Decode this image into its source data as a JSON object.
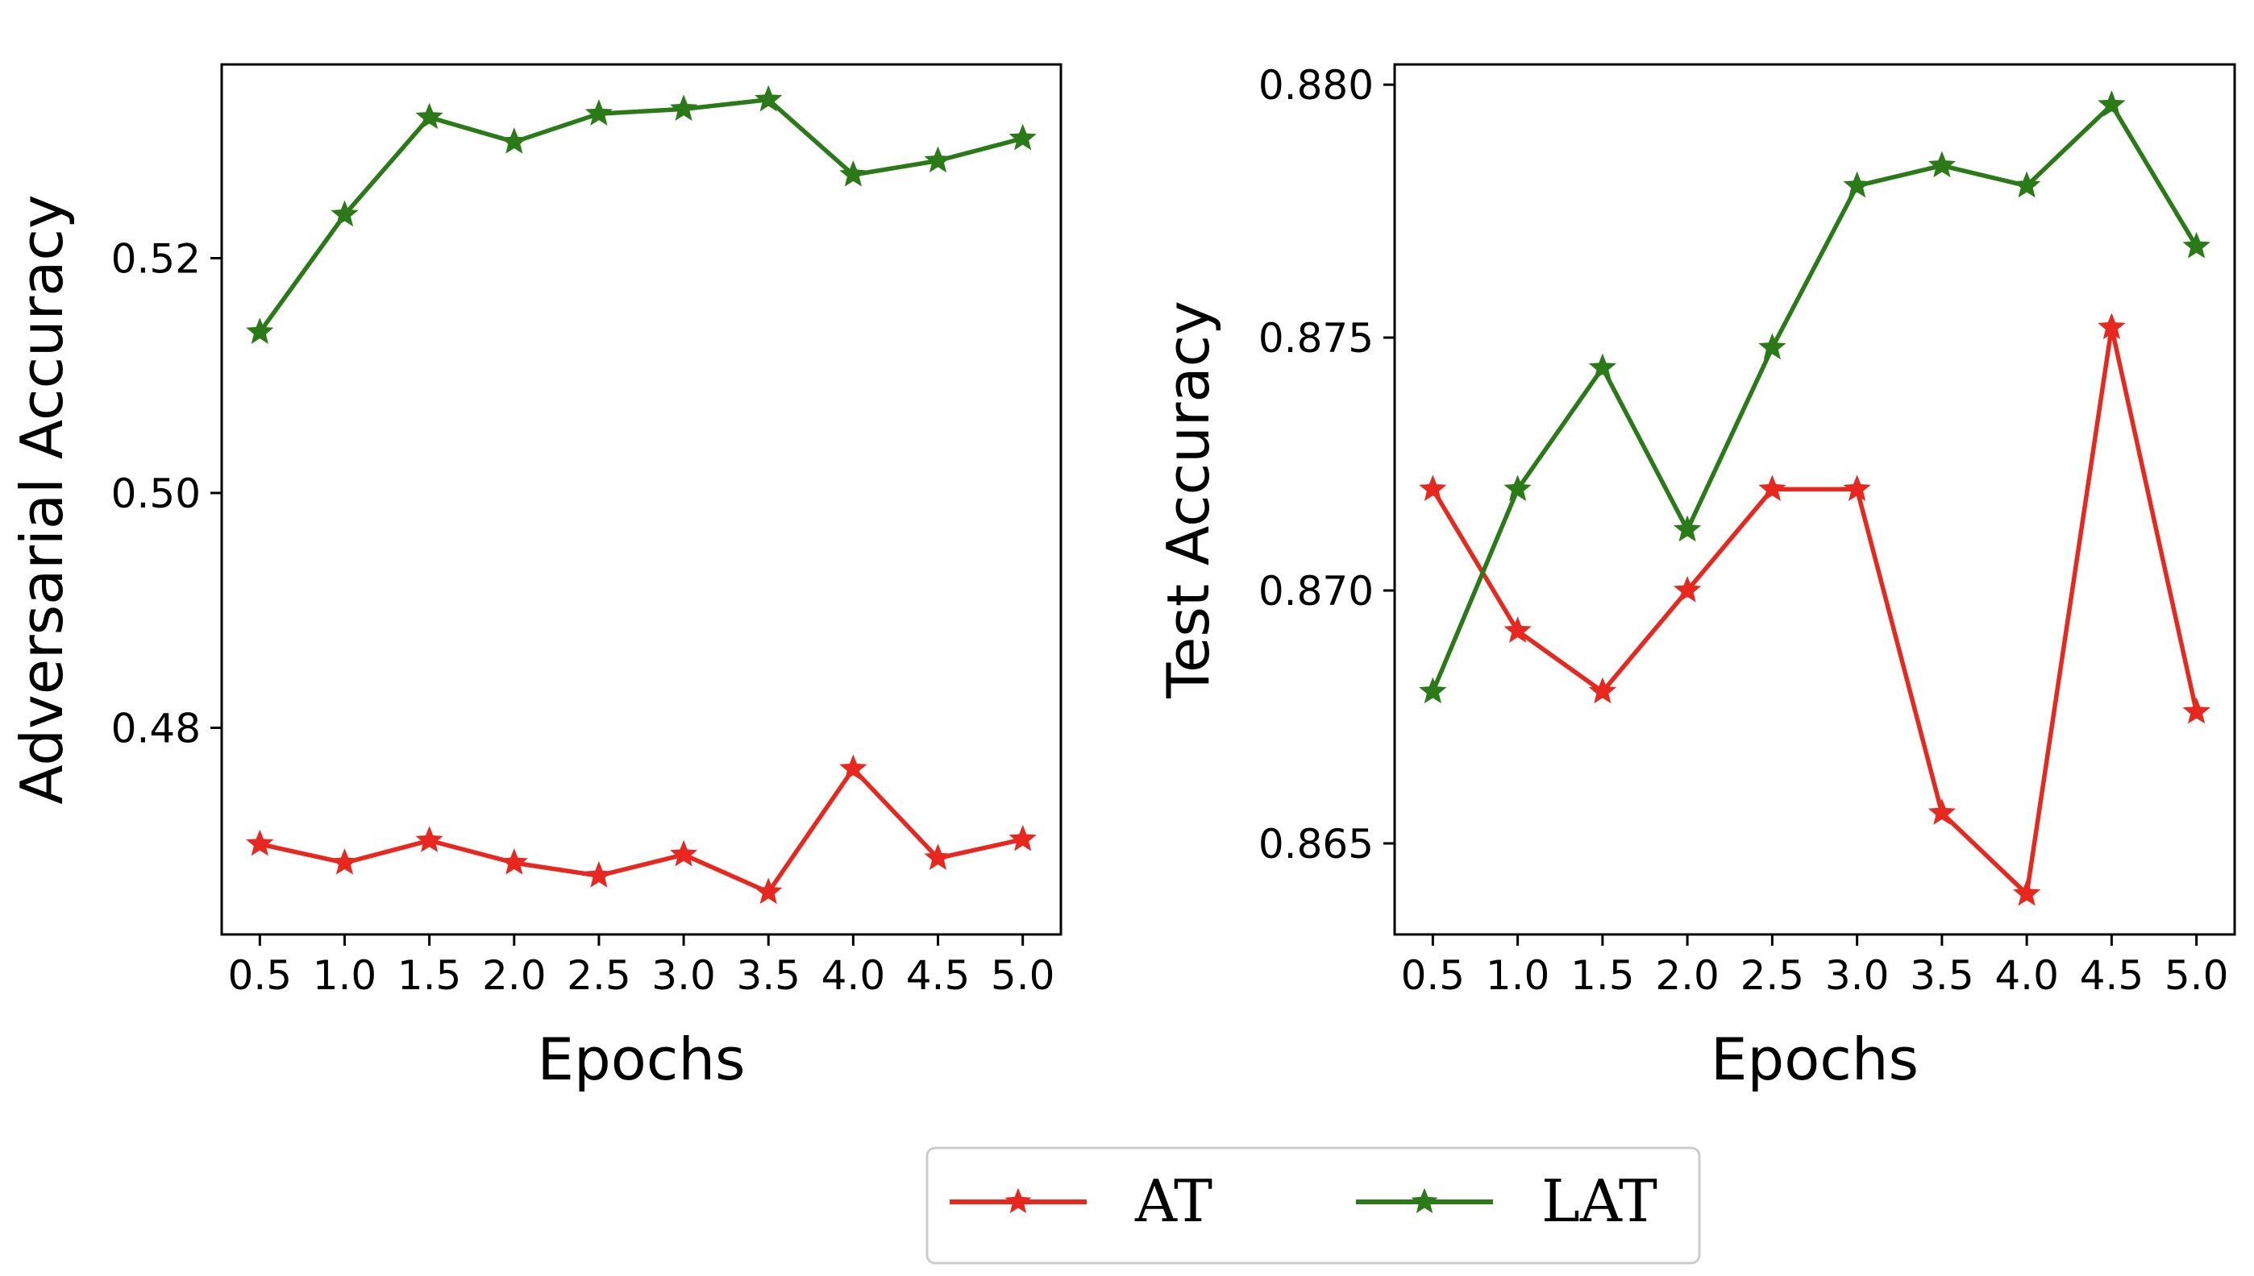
{
  "figure": {
    "colors": {
      "AT": "#e8281e",
      "LAT": "#2a7a18"
    }
  },
  "legend": {
    "items": [
      {
        "label": "AT",
        "series": "AT"
      },
      {
        "label": "LAT",
        "series": "LAT"
      }
    ]
  },
  "chart_data": [
    {
      "type": "line",
      "xlabel": "Epochs",
      "ylabel": "Adversarial Accuracy",
      "x": [
        0.5,
        1.0,
        1.5,
        2.0,
        2.5,
        3.0,
        3.5,
        4.0,
        4.5,
        5.0
      ],
      "x_tick_labels": [
        "0.5",
        "1.0",
        "1.5",
        "2.0",
        "2.5",
        "3.0",
        "3.5",
        "4.0",
        "4.5",
        "5.0"
      ],
      "xlim": [
        0.275,
        5.225
      ],
      "y_ticks": [
        0.48,
        0.5,
        0.52
      ],
      "y_tick_labels": [
        "0.48",
        "0.50",
        "0.52"
      ],
      "ylim": [
        0.4624,
        0.5365
      ],
      "grid": false,
      "series": [
        {
          "name": "AT",
          "marker": "star",
          "values": [
            0.4701,
            0.4685,
            0.4704,
            0.4685,
            0.4674,
            0.4692,
            0.466,
            0.4765,
            0.4689,
            0.4705
          ]
        },
        {
          "name": "LAT",
          "marker": "star",
          "values": [
            0.5137,
            0.5237,
            0.532,
            0.5299,
            0.5323,
            0.5327,
            0.5335,
            0.5271,
            0.5283,
            0.5302
          ]
        }
      ]
    },
    {
      "type": "line",
      "xlabel": "Epochs",
      "ylabel": "Test Accuracy",
      "x": [
        0.5,
        1.0,
        1.5,
        2.0,
        2.5,
        3.0,
        3.5,
        4.0,
        4.5,
        5.0
      ],
      "x_tick_labels": [
        "0.5",
        "1.0",
        "1.5",
        "2.0",
        "2.5",
        "3.0",
        "3.5",
        "4.0",
        "4.5",
        "5.0"
      ],
      "xlim": [
        0.275,
        5.225
      ],
      "y_ticks": [
        0.865,
        0.87,
        0.875,
        0.88
      ],
      "y_tick_labels": [
        "0.865",
        "0.870",
        "0.875",
        "0.880"
      ],
      "ylim": [
        0.8632,
        0.8804
      ],
      "grid": false,
      "series": [
        {
          "name": "AT",
          "marker": "star",
          "values": [
            0.872,
            0.8692,
            0.868,
            0.87,
            0.872,
            0.872,
            0.8656,
            0.864,
            0.8752,
            0.8676
          ]
        },
        {
          "name": "LAT",
          "marker": "star",
          "values": [
            0.868,
            0.872,
            0.8744,
            0.8712,
            0.8748,
            0.878,
            0.8784,
            0.878,
            0.8796,
            0.8768
          ]
        }
      ]
    }
  ]
}
